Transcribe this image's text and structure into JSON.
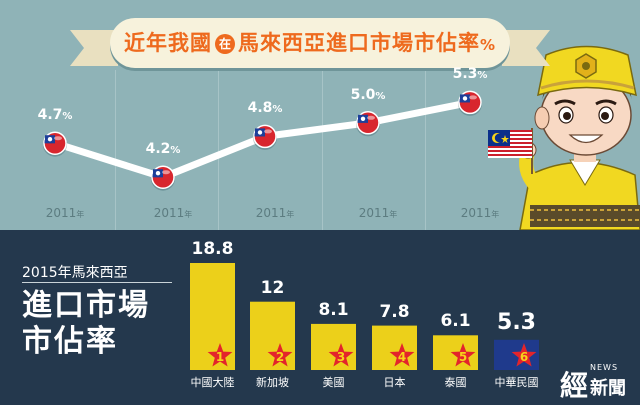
{
  "title": {
    "before": "近年我國",
    "badge": "在",
    "after": "馬來西亞進口市場市佔率",
    "unit": "%"
  },
  "chart_data": [
    {
      "type": "line",
      "x": [
        "2011年",
        "2011年",
        "2011年",
        "2011年",
        "2011年"
      ],
      "values": [
        4.7,
        4.2,
        4.8,
        5.0,
        5.3
      ],
      "value_labels": [
        "4.7",
        "4.2",
        "4.8",
        "5.0",
        "5.3"
      ],
      "unit": "%",
      "markers": "taiwan-flag",
      "ylim": [
        3.6,
        5.6
      ],
      "grid": false,
      "colors": {
        "line": "#ffffff",
        "labels": "#ffffff",
        "years": "#5c7c80"
      }
    },
    {
      "type": "bar",
      "title_year": "2015年馬來西亞",
      "title_main": "進口市場市佔率",
      "categories": [
        "中國大陸",
        "新加坡",
        "美國",
        "日本",
        "泰國",
        "中華民國"
      ],
      "values": [
        18.8,
        12,
        8.1,
        7.8,
        6.1,
        5.3
      ],
      "value_labels": [
        "18.8",
        "12",
        "8.1",
        "7.8",
        "6.1",
        "5.3"
      ],
      "ranks": [
        "1",
        "2",
        "3",
        "4",
        "5",
        "6"
      ],
      "ylim": [
        0,
        20
      ],
      "colors": {
        "bar": "#ecd01a",
        "highlight": "#1f3a8c",
        "star": "#e3242b",
        "rank_text": "#f6d31a"
      }
    }
  ],
  "logo": {
    "main": "經",
    "news": "NEWS",
    "sub": "新聞"
  },
  "illustration": {
    "mascot": "malaysian-boy",
    "flag": "malaysia-flag-icon"
  }
}
